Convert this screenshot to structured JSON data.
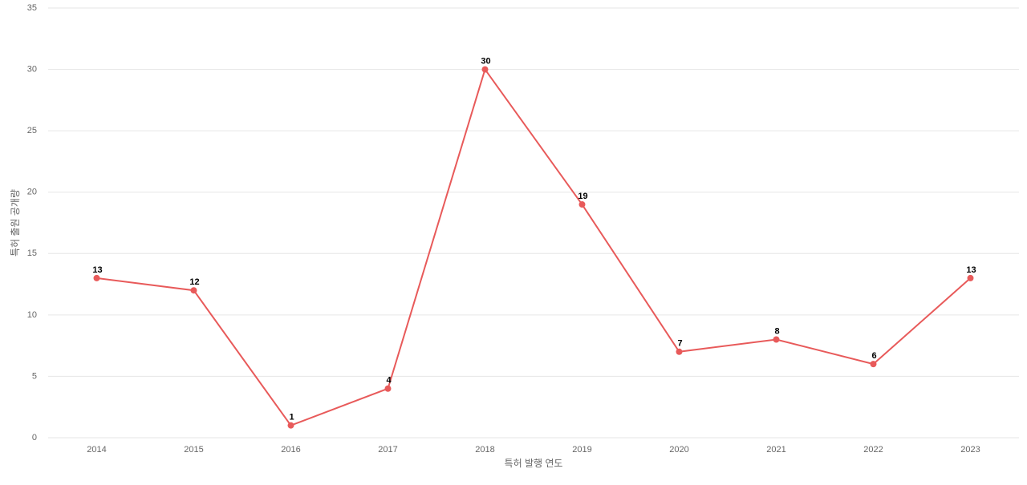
{
  "chart_data": {
    "type": "line",
    "x_label": "특허 발행 연도",
    "y_label": "특허 출원 공개량",
    "categories": [
      "2014",
      "2015",
      "2016",
      "2017",
      "2018",
      "2019",
      "2020",
      "2021",
      "2022",
      "2023"
    ],
    "values": [
      13,
      12,
      1,
      4,
      30,
      19,
      7,
      8,
      6,
      13
    ],
    "color": "#e85a5a",
    "ylim": [
      0,
      35
    ],
    "yticks": [
      0,
      5,
      10,
      15,
      20,
      25,
      30,
      35
    ],
    "grid": true
  }
}
